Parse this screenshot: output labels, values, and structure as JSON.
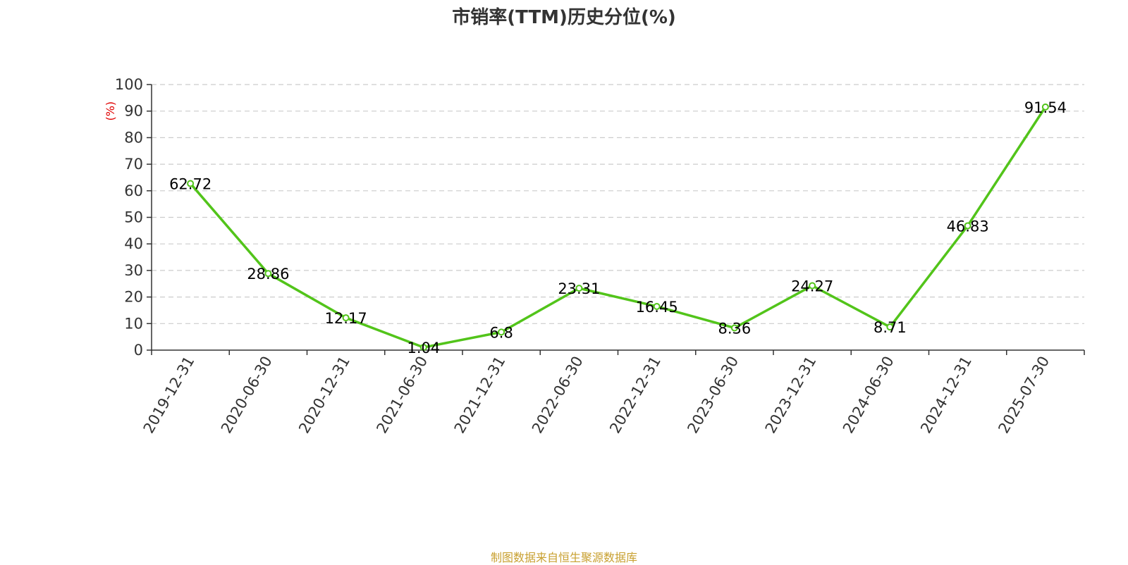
{
  "title": "市销率(TTM)历史分位(%)",
  "source": "制图数据来自恒生聚源数据库",
  "colors": {
    "line": "#52c41a",
    "point_fill": "#ffffff",
    "grid": "#cccccc",
    "axis": "#333333",
    "ylabel": "#e00000",
    "source": "#c8a030"
  },
  "chart_data": {
    "type": "line",
    "title": "市销率(TTM)历史分位(%)",
    "xlabel": "",
    "ylabel": "(%)",
    "ylim": [
      0,
      100
    ],
    "yticks": [
      0,
      10,
      20,
      30,
      40,
      50,
      60,
      70,
      80,
      90,
      100
    ],
    "grid": true,
    "grid_style": "dashed horizontal",
    "categories": [
      "2019-12-31",
      "2020-06-30",
      "2020-12-31",
      "2021-06-30",
      "2021-12-31",
      "2022-06-30",
      "2022-12-31",
      "2023-06-30",
      "2023-12-31",
      "2024-06-30",
      "2024-12-31",
      "2025-07-30"
    ],
    "values": [
      62.72,
      28.86,
      12.17,
      1.04,
      6.8,
      23.31,
      16.45,
      8.36,
      24.27,
      8.71,
      46.83,
      91.54
    ],
    "data_labels": [
      "62.72",
      "28.86",
      "12.17",
      "1.04",
      "6.8",
      "23.31",
      "16.45",
      "8.36",
      "24.27",
      "8.71",
      "46.83",
      "91.54"
    ]
  }
}
